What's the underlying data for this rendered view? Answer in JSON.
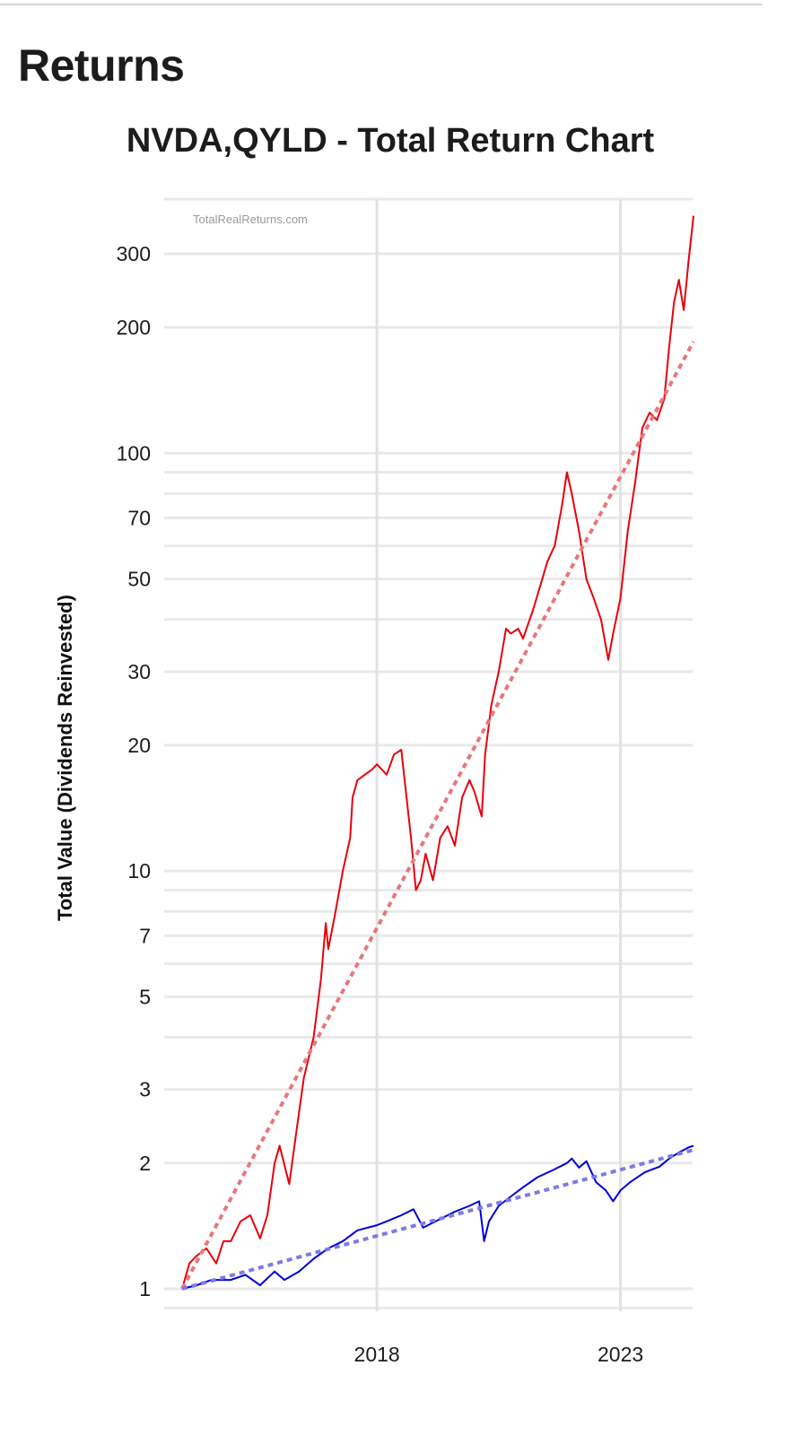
{
  "page": {
    "heading": "Returns"
  },
  "chart_data": {
    "type": "line",
    "title": "NVDA,QYLD - Total Return Chart",
    "ylabel": "Total Value (Dividends Reinvested)",
    "xlabel": "",
    "watermark": "TotalRealReturns.com",
    "y_scale": "log",
    "ylim": [
      0.92,
      395
    ],
    "xlim": [
      2014.0,
      2024.5
    ],
    "y_ticks": [
      1,
      2,
      3,
      5,
      7,
      10,
      20,
      30,
      50,
      70,
      100,
      200,
      300
    ],
    "y_tick_labels": [
      "1",
      "2",
      "3",
      "5",
      "7",
      "10",
      "20",
      "30",
      "50",
      "70",
      "100",
      "200",
      "300"
    ],
    "y_minor_gridlines": [
      0.9,
      4,
      6,
      8,
      9,
      40,
      60,
      80,
      90
    ],
    "x_ticks": [
      2018,
      2023
    ],
    "x_tick_labels": [
      "2018",
      "2023"
    ],
    "grid": true,
    "legend": "none",
    "series": [
      {
        "color": "#e8000b",
        "x": [
          2014.0,
          2014.15,
          2014.3,
          2014.5,
          2014.7,
          2014.85,
          2015.0,
          2015.2,
          2015.4,
          2015.6,
          2015.75,
          2015.9,
          2016.0,
          2016.2,
          2016.35,
          2016.5,
          2016.7,
          2016.85,
          2016.95,
          2017.0,
          2017.15,
          2017.3,
          2017.45,
          2017.5,
          2017.6,
          2017.75,
          2017.9,
          2018.0,
          2018.2,
          2018.35,
          2018.5,
          2018.7,
          2018.8,
          2018.9,
          2019.0,
          2019.15,
          2019.3,
          2019.45,
          2019.6,
          2019.75,
          2019.9,
          2020.0,
          2020.15,
          2020.22,
          2020.35,
          2020.5,
          2020.65,
          2020.75,
          2020.9,
          2021.0,
          2021.2,
          2021.35,
          2021.5,
          2021.65,
          2021.8,
          2021.9,
          2022.0,
          2022.15,
          2022.3,
          2022.45,
          2022.6,
          2022.75,
          2022.85,
          2023.0,
          2023.15,
          2023.3,
          2023.45,
          2023.6,
          2023.75,
          2023.9,
          2024.0,
          2024.1,
          2024.2,
          2024.3,
          2024.4,
          2024.5
        ],
        "values": [
          1.0,
          1.15,
          1.2,
          1.25,
          1.15,
          1.3,
          1.3,
          1.45,
          1.5,
          1.32,
          1.5,
          2.0,
          2.2,
          1.78,
          2.4,
          3.2,
          4.0,
          5.5,
          7.5,
          6.5,
          8.0,
          10.0,
          12.0,
          15.0,
          16.5,
          17.0,
          17.5,
          18.0,
          17.0,
          19.0,
          19.5,
          12.0,
          9.0,
          9.5,
          11.0,
          9.5,
          12.0,
          12.8,
          11.5,
          15.0,
          16.5,
          15.5,
          13.5,
          19.0,
          25.0,
          30.0,
          38.0,
          37.0,
          38.0,
          36.0,
          42.0,
          48.0,
          55.0,
          60.0,
          75.0,
          90.0,
          80.0,
          65.0,
          50.0,
          45.0,
          40.0,
          32.0,
          37.0,
          45.0,
          65.0,
          85.0,
          115.0,
          125.0,
          120.0,
          135.0,
          180.0,
          230.0,
          260.0,
          220.0,
          290.0,
          370.0
        ]
      },
      {
        "color": "#0000d6",
        "x": [
          2014.0,
          2014.3,
          2014.6,
          2015.0,
          2015.3,
          2015.6,
          2015.9,
          2016.1,
          2016.4,
          2016.7,
          2017.0,
          2017.3,
          2017.6,
          2018.0,
          2018.2,
          2018.5,
          2018.75,
          2018.95,
          2019.1,
          2019.3,
          2019.6,
          2019.9,
          2020.1,
          2020.2,
          2020.3,
          2020.5,
          2020.8,
          2021.0,
          2021.3,
          2021.6,
          2021.9,
          2022.0,
          2022.15,
          2022.3,
          2022.5,
          2022.7,
          2022.85,
          2023.0,
          2023.2,
          2023.5,
          2023.8,
          2024.0,
          2024.2,
          2024.4,
          2024.5
        ],
        "values": [
          1.0,
          1.02,
          1.05,
          1.05,
          1.08,
          1.02,
          1.1,
          1.05,
          1.1,
          1.18,
          1.25,
          1.3,
          1.38,
          1.42,
          1.45,
          1.5,
          1.55,
          1.4,
          1.43,
          1.47,
          1.53,
          1.58,
          1.62,
          1.3,
          1.45,
          1.58,
          1.68,
          1.75,
          1.85,
          1.92,
          2.0,
          2.05,
          1.95,
          2.02,
          1.8,
          1.72,
          1.62,
          1.72,
          1.8,
          1.9,
          1.96,
          2.05,
          2.12,
          2.18,
          2.2
        ]
      },
      {
        "color": "#e8777b",
        "style": "trend",
        "x": [
          2014.0,
          2024.5
        ],
        "values": [
          1.0,
          185.0
        ]
      },
      {
        "color": "#7b7be6",
        "style": "trend",
        "x": [
          2014.0,
          2024.5
        ],
        "values": [
          1.0,
          2.15
        ]
      }
    ]
  }
}
